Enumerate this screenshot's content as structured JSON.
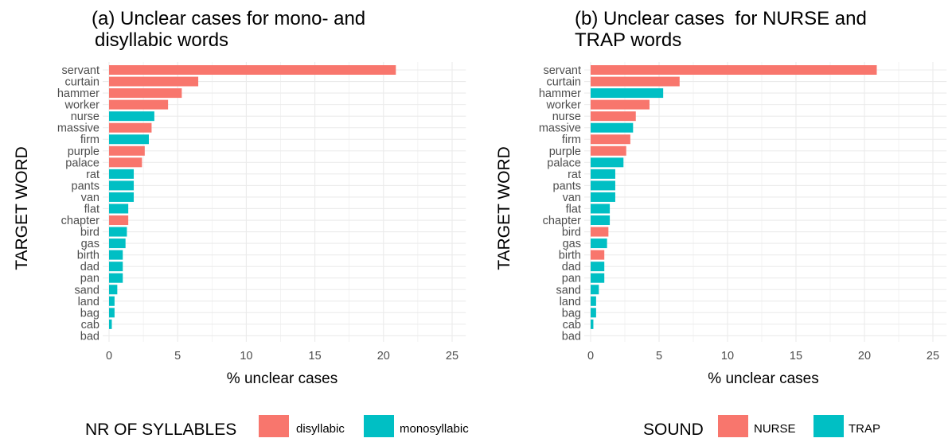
{
  "colors": {
    "salmon": "#F8766D",
    "teal": "#00BFC4",
    "grid": "#EBEBEB",
    "tick": "#4D4D4D",
    "text": "#000000"
  },
  "chart_data": [
    {
      "type": "bar",
      "orientation": "horizontal",
      "title": "(a) Unclear cases for mono- and\n disyllabic words",
      "xlabel": "% unclear cases",
      "ylabel": "TARGET WORD",
      "xlim": [
        0,
        26
      ],
      "xticks": [
        0,
        5,
        10,
        15,
        20,
        25
      ],
      "grid": true,
      "legend": {
        "title": "NR OF SYLLABLES",
        "position": "bottom",
        "entries": [
          "disyllabic",
          "monosyllabic"
        ]
      },
      "categories": [
        "servant",
        "curtain",
        "hammer",
        "worker",
        "nurse",
        "massive",
        "firm",
        "purple",
        "palace",
        "rat",
        "pants",
        "van",
        "flat",
        "chapter",
        "bird",
        "gas",
        "birth",
        "dad",
        "pan",
        "sand",
        "land",
        "bag",
        "cab",
        "bad"
      ],
      "values": [
        20.9,
        6.5,
        5.3,
        4.3,
        3.3,
        3.1,
        2.9,
        2.6,
        2.4,
        1.8,
        1.8,
        1.8,
        1.4,
        1.4,
        1.3,
        1.2,
        1.0,
        1.0,
        1.0,
        0.6,
        0.4,
        0.4,
        0.2,
        0
      ],
      "groups": [
        "disyllabic",
        "disyllabic",
        "disyllabic",
        "disyllabic",
        "monosyllabic",
        "disyllabic",
        "monosyllabic",
        "disyllabic",
        "disyllabic",
        "monosyllabic",
        "monosyllabic",
        "monosyllabic",
        "monosyllabic",
        "disyllabic",
        "monosyllabic",
        "monosyllabic",
        "monosyllabic",
        "monosyllabic",
        "monosyllabic",
        "monosyllabic",
        "monosyllabic",
        "monosyllabic",
        "monosyllabic",
        "monosyllabic"
      ]
    },
    {
      "type": "bar",
      "orientation": "horizontal",
      "title": "(b) Unclear cases  for NURSE and\nTRAP words",
      "xlabel": "% unclear cases",
      "ylabel": "TARGET WORD",
      "xlim": [
        0,
        26
      ],
      "xticks": [
        0,
        5,
        10,
        15,
        20,
        25
      ],
      "grid": true,
      "legend": {
        "title": "SOUND",
        "position": "bottom",
        "entries": [
          "NURSE",
          "TRAP"
        ]
      },
      "categories": [
        "servant",
        "curtain",
        "hammer",
        "worker",
        "nurse",
        "massive",
        "firm",
        "purple",
        "palace",
        "rat",
        "pants",
        "van",
        "flat",
        "chapter",
        "bird",
        "gas",
        "birth",
        "dad",
        "pan",
        "sand",
        "land",
        "bag",
        "cab",
        "bad"
      ],
      "values": [
        20.9,
        6.5,
        5.3,
        4.3,
        3.3,
        3.1,
        2.9,
        2.6,
        2.4,
        1.8,
        1.8,
        1.8,
        1.4,
        1.4,
        1.3,
        1.2,
        1.0,
        1.0,
        1.0,
        0.6,
        0.4,
        0.4,
        0.2,
        0
      ],
      "groups": [
        "NURSE",
        "NURSE",
        "TRAP",
        "NURSE",
        "NURSE",
        "TRAP",
        "NURSE",
        "NURSE",
        "TRAP",
        "TRAP",
        "TRAP",
        "TRAP",
        "TRAP",
        "TRAP",
        "NURSE",
        "TRAP",
        "NURSE",
        "TRAP",
        "TRAP",
        "TRAP",
        "TRAP",
        "TRAP",
        "TRAP",
        "TRAP"
      ]
    }
  ]
}
